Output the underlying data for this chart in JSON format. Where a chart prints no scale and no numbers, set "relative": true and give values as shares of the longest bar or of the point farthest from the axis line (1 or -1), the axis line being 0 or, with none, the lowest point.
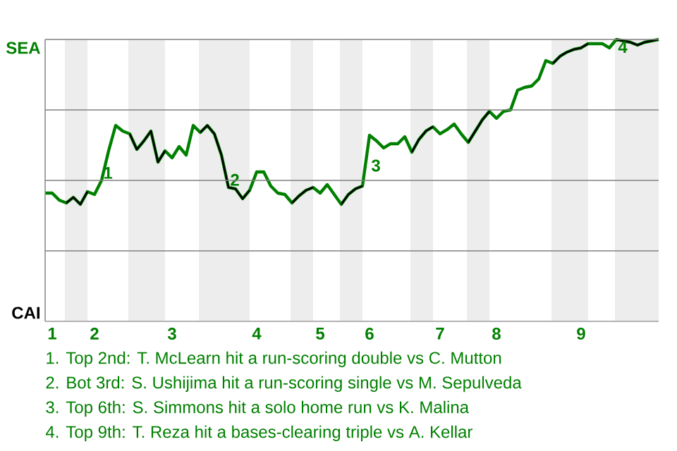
{
  "chart_data": {
    "type": "line",
    "relative": true,
    "categories": [
      null,
      "1",
      null,
      null,
      null,
      null,
      null,
      "2",
      null,
      null,
      null,
      null,
      null,
      null,
      null,
      null,
      null,
      null,
      "3",
      null,
      null,
      null,
      null,
      null,
      null,
      null,
      null,
      null,
      null,
      null,
      "4",
      null,
      null,
      null,
      null,
      null,
      null,
      null,
      null,
      "5",
      null,
      null,
      null,
      null,
      null,
      null,
      "6",
      null,
      null,
      null,
      null,
      null,
      null,
      null,
      null,
      null,
      "7",
      null,
      null,
      null,
      null,
      null,
      null,
      null,
      "8",
      null,
      null,
      null,
      null,
      null,
      null,
      null,
      null,
      null,
      null,
      null,
      "9",
      null,
      null,
      null,
      null,
      null,
      null,
      null,
      null,
      null,
      null,
      null
    ],
    "grid": "y",
    "marker": "none",
    "line_style": "solid",
    "series": [
      {
        "color": "#008000",
        "values": [
          0.455,
          0.455,
          0.43,
          0.42,
          0.44,
          0.415,
          0.46,
          0.45,
          0.5,
          0.605,
          0.695,
          0.675,
          0.665,
          0.61,
          0.64,
          0.675,
          0.565,
          0.605,
          0.58,
          0.62,
          0.59,
          0.695,
          0.67,
          0.695,
          0.665,
          0.59,
          0.475,
          0.47,
          0.435,
          0.465,
          0.53,
          0.53,
          0.48,
          0.455,
          0.45,
          0.42,
          0.445,
          0.465,
          0.475,
          0.455,
          0.485,
          0.45,
          0.415,
          0.45,
          0.47,
          0.48,
          0.66,
          0.64,
          0.615,
          0.63,
          0.63,
          0.655,
          0.6,
          0.645,
          0.675,
          0.69,
          0.665,
          0.68,
          0.7,
          0.665,
          0.635,
          0.675,
          0.715,
          0.745,
          0.72,
          0.745,
          0.75,
          0.82,
          0.83,
          0.835,
          0.86,
          0.925,
          0.915,
          0.94,
          0.955,
          0.965,
          0.97,
          0.985,
          0.985,
          0.985,
          0.97,
          1.0,
          0.995,
          0.99,
          0.98,
          0.99,
          0.995,
          1.0
        ]
      },
      {
        "color": "#000000",
        "values": [
          null,
          null,
          null,
          0.42,
          0.44,
          0.415,
          0.46,
          null,
          null,
          null,
          null,
          null,
          0.665,
          0.61,
          0.64,
          0.675,
          0.565,
          0.605,
          null,
          null,
          null,
          null,
          0.67,
          0.695,
          0.665,
          0.59,
          0.475,
          0.47,
          0.435,
          0.465,
          null,
          null,
          null,
          null,
          null,
          0.42,
          0.445,
          0.465,
          0.475,
          null,
          null,
          null,
          0.415,
          0.45,
          0.47,
          0.48,
          null,
          null,
          null,
          null,
          null,
          null,
          0.6,
          0.645,
          0.675,
          0.69,
          null,
          null,
          null,
          null,
          0.635,
          0.675,
          0.715,
          0.745,
          null,
          null,
          null,
          null,
          null,
          null,
          null,
          null,
          0.915,
          0.94,
          0.955,
          0.965,
          0.97,
          0.985,
          null,
          null,
          null,
          1.0,
          0.995,
          0.99,
          0.98,
          0.99,
          0.995,
          1.0
        ]
      }
    ],
    "annotations": [
      "SEA",
      "CAI",
      {
        "text": "1",
        "y": 0.5
      },
      {
        "text": "2",
        "y": 0.475
      },
      {
        "text": "3",
        "x": "6",
        "y": 0.58
      },
      {
        "text": "4",
        "y": 1.0
      },
      "1. Top 2nd: T. McLearn hit a run-scoring double vs C. Mutton",
      "2. Bot 3rd: S. Ushijima hit a run-scoring single vs M. Sepulveda",
      "3. Top 6th: S. Simmons hit a solo home run vs K. Malina",
      "4. Top 9th: T. Reza hit a bases-clearing triple vs A. Kellar"
    ]
  }
}
